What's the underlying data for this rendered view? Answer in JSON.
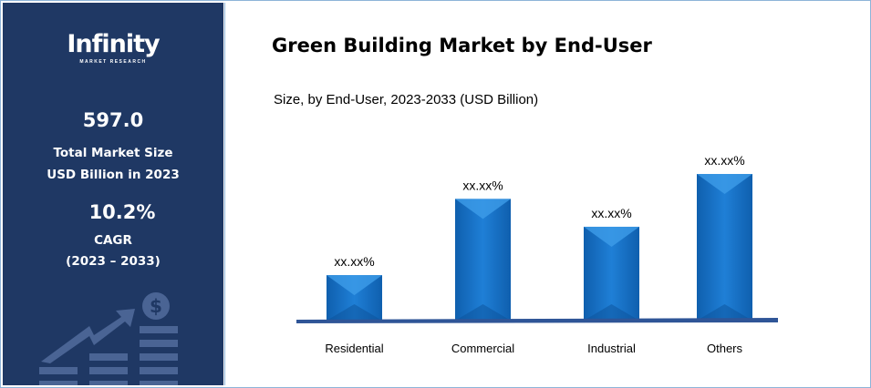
{
  "sidebar": {
    "logo_text": "Infinity",
    "logo_subtext": "MARKET RESEARCH",
    "market_size": "597.0",
    "market_size_label_1": "Total Market Size",
    "market_size_label_2": "USD Billion in 2023",
    "cagr": "10.2%",
    "cagr_label": "CAGR",
    "cagr_period": "(2023 – 2033)",
    "background_color": "#1f3864",
    "decoration_icon": "growth-chart-dollar-icon"
  },
  "chart_data": {
    "type": "bar",
    "title": "Green Building Market by End-User",
    "subtitle": "Size, by End-User, 2023-2033 (USD Billion)",
    "categories": [
      "Residential",
      "Commercial",
      "Industrial",
      "Others"
    ],
    "values": [
      31,
      83,
      64,
      100
    ],
    "data_labels": [
      "xx.xx%",
      "xx.xx%",
      "xx.xx%",
      "xx.xx%"
    ],
    "ylim": [
      0,
      100
    ],
    "grid": false,
    "legend": "none",
    "bar_color": "#1a75c9"
  }
}
